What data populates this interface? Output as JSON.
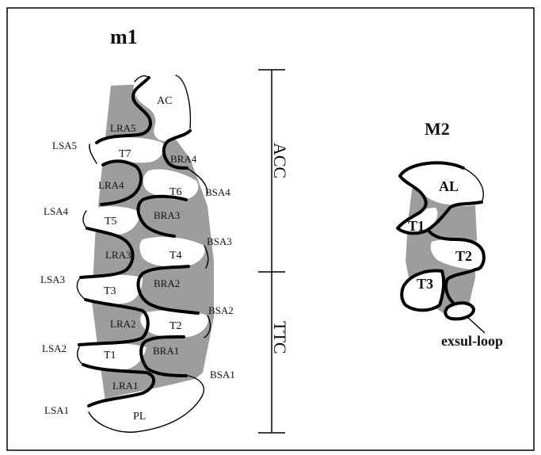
{
  "figure": {
    "m1": {
      "title": "m1",
      "labels": {
        "ac": "AC",
        "t7": "T7",
        "t6": "T6",
        "t5": "T5",
        "t4": "T4",
        "t3": "T3",
        "t2": "T2",
        "t1": "T1",
        "pl": "PL",
        "lra5": "LRA5",
        "lra4": "LRA4",
        "lra3": "LRA3",
        "lra2": "LRA2",
        "lra1": "LRA1",
        "bra4": "BRA4",
        "bra3": "BRA3",
        "bra2": "BRA2",
        "bra1": "BRA1",
        "lsa5": "LSA5",
        "lsa4": "LSA4",
        "lsa3": "LSA3",
        "lsa2": "LSA2",
        "lsa1": "LSA1",
        "bsa4": "BSA4",
        "bsa3": "BSA3",
        "bsa2": "BSA2",
        "bsa1": "BSA1"
      }
    },
    "scale": {
      "upper": "ACC",
      "lower": "TTC"
    },
    "m2": {
      "title": "M2",
      "labels": {
        "al": "AL",
        "t1": "T1",
        "t2": "T2",
        "t3": "T3",
        "exsul": "exsul-loop"
      }
    }
  }
}
